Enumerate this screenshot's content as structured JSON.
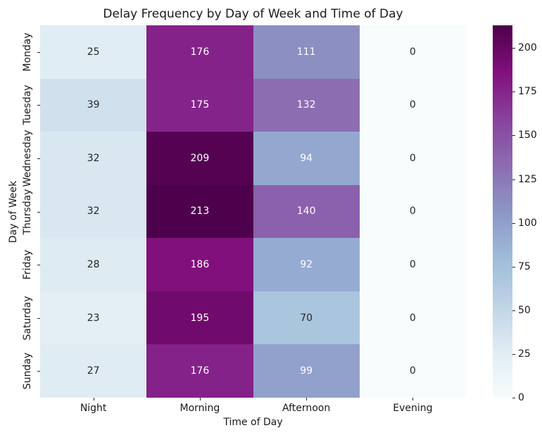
{
  "chart_data": {
    "type": "heatmap",
    "title": "Delay Frequency by Day of Week and Time of Day",
    "xlabel": "Time of Day",
    "ylabel": "Day of Week",
    "columns": [
      "Night",
      "Morning",
      "Afternoon",
      "Evening"
    ],
    "rows": [
      "Monday",
      "Tuesday",
      "Wednesday",
      "Thursday",
      "Friday",
      "Saturday",
      "Sunday"
    ],
    "values": [
      [
        25,
        176,
        111,
        0
      ],
      [
        39,
        175,
        132,
        0
      ],
      [
        32,
        209,
        94,
        0
      ],
      [
        32,
        213,
        140,
        0
      ],
      [
        28,
        186,
        92,
        0
      ],
      [
        23,
        195,
        70,
        0
      ],
      [
        27,
        176,
        99,
        0
      ]
    ],
    "vmin": 0,
    "vmax": 213,
    "colormap": "BuPu",
    "colormap_stops": [
      "#f7fcfd",
      "#e0ecf4",
      "#bfd3e6",
      "#9ebcda",
      "#8c96c6",
      "#8c6bb1",
      "#88419d",
      "#810f7c",
      "#4d004b"
    ],
    "colorbar_ticks": [
      0,
      25,
      50,
      75,
      100,
      125,
      150,
      175,
      200
    ],
    "annotation_color_dark": "#262626",
    "annotation_color_light": "#ffffff",
    "legend_position": "right",
    "grid": false
  }
}
